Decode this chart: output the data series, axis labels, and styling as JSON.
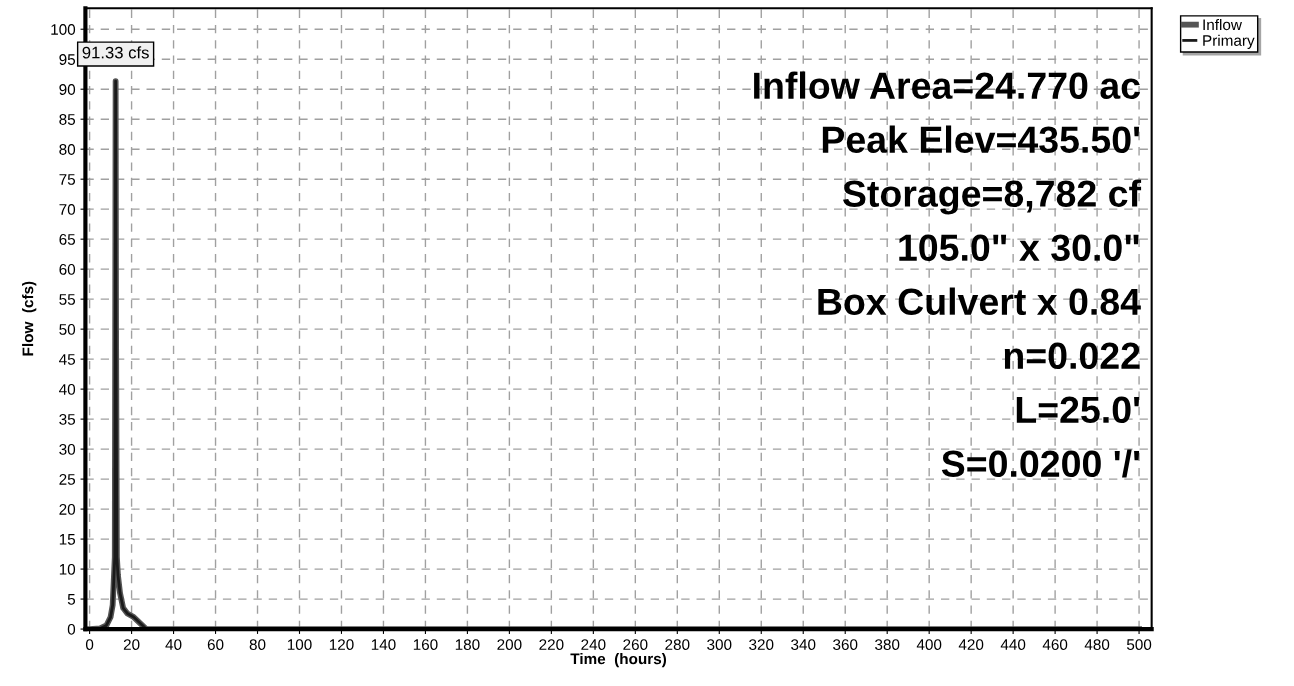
{
  "chart_data": {
    "type": "line",
    "xlabel": "Time  (hours)",
    "ylabel": "Flow  (cfs)",
    "x": [
      0,
      5,
      8,
      10,
      11,
      11.5,
      12,
      12.2,
      12.4,
      12.6,
      13,
      13.5,
      14.5,
      16,
      18,
      21,
      24,
      27,
      500
    ],
    "series": [
      {
        "name": "Inflow",
        "color": "#555555",
        "values": [
          0,
          0.1,
          0.6,
          2,
          4,
          8,
          12,
          50,
          91.33,
          50,
          12,
          9,
          6,
          3.5,
          2.6,
          2,
          1,
          0,
          0
        ]
      },
      {
        "name": "Primary",
        "color": "#1a1a1a",
        "values": [
          0,
          0.1,
          0.6,
          2,
          4,
          8,
          12,
          50,
          91.33,
          50,
          12,
          9,
          6,
          3.5,
          2.6,
          2,
          1,
          0,
          0
        ]
      }
    ],
    "xlim": [
      -2,
      506
    ],
    "ylim": [
      0,
      103.5
    ],
    "xticks": [
      0,
      20,
      40,
      60,
      80,
      100,
      120,
      140,
      160,
      180,
      200,
      220,
      240,
      260,
      280,
      300,
      320,
      340,
      360,
      380,
      400,
      420,
      440,
      460,
      480,
      500
    ],
    "yticks": [
      0,
      5,
      10,
      15,
      20,
      25,
      30,
      35,
      40,
      45,
      50,
      55,
      60,
      65,
      70,
      75,
      80,
      85,
      90,
      95,
      100
    ],
    "grid": true,
    "legend": "top right",
    "line_style": "solid",
    "marker": "none",
    "annotations": [
      {
        "text": "91.33 cfs",
        "x": 12.4,
        "y": 91.33
      },
      "Inflow Area=24.770 ac",
      "Peak Elev=435.50'",
      "Storage=8,782 cf",
      "105.0\" x 30.0\"",
      "Box Culvert x 0.84",
      "n=0.022",
      "L=25.0'",
      "S=0.0200 '/'"
    ]
  }
}
